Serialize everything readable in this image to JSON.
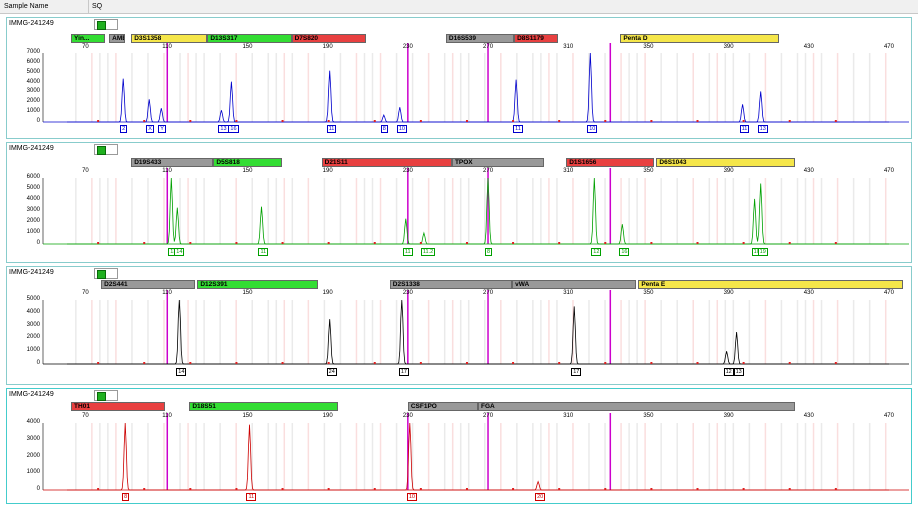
{
  "header": {
    "col_sample_name": "Sample Name",
    "col_sq": "SQ"
  },
  "panels": [
    {
      "sample": "IMMG-241249",
      "color": "#0000cc",
      "yticks": [
        "7000",
        "6000",
        "5000",
        "4000",
        "3000",
        "2000",
        "1000",
        "0"
      ],
      "ymax": 7000,
      "loci": [
        {
          "name": "Yin...",
          "start": 62,
          "end": 79,
          "color": "#33dd33"
        },
        {
          "name": "AMEL",
          "start": 81,
          "end": 89,
          "color": "#999999"
        },
        {
          "name": "D3S1358",
          "start": 92,
          "end": 130,
          "color": "#f5e64a"
        },
        {
          "name": "D13S317",
          "start": 130,
          "end": 172,
          "color": "#33dd33"
        },
        {
          "name": "D7S820",
          "start": 172,
          "end": 209,
          "color": "#e84040"
        },
        {
          "name": "D16S539",
          "start": 249,
          "end": 283,
          "color": "#999999"
        },
        {
          "name": "D8S1179",
          "start": 283,
          "end": 305,
          "color": "#e84040"
        },
        {
          "name": "Penta D",
          "start": 336,
          "end": 415,
          "color": "#f5e64a"
        }
      ],
      "peaks": [
        {
          "bp": 88,
          "h": 4400,
          "label": "2"
        },
        {
          "bp": 101,
          "h": 2300,
          "label": "X"
        },
        {
          "bp": 107,
          "h": 1400,
          "label": "Y"
        },
        {
          "bp": 137,
          "h": 1200,
          "label": "13"
        },
        {
          "bp": 142,
          "h": 4100,
          "label": "16"
        },
        {
          "bp": 191,
          "h": 5200,
          "label": "11"
        },
        {
          "bp": 218,
          "h": 700,
          "label": "8"
        },
        {
          "bp": 226,
          "h": 1500,
          "label": "10"
        },
        {
          "bp": 284,
          "h": 4300,
          "label": "11"
        },
        {
          "bp": 321,
          "h": 7000,
          "label": "10"
        },
        {
          "bp": 397,
          "h": 1800,
          "label": "11"
        },
        {
          "bp": 406,
          "h": 3100,
          "label": "13"
        }
      ]
    },
    {
      "sample": "IMMG-241249",
      "color": "#00a000",
      "yticks": [
        "6000",
        "5000",
        "4000",
        "3000",
        "2000",
        "1000",
        "0"
      ],
      "ymax": 6000,
      "loci": [
        {
          "name": "D19S433",
          "start": 92,
          "end": 133,
          "color": "#999999"
        },
        {
          "name": "D5S818",
          "start": 133,
          "end": 167,
          "color": "#33dd33"
        },
        {
          "name": "D21S11",
          "start": 187,
          "end": 252,
          "color": "#e84040"
        },
        {
          "name": "TPOX",
          "start": 252,
          "end": 298,
          "color": "#999999"
        },
        {
          "name": "D1S1656",
          "start": 309,
          "end": 353,
          "color": "#e84040"
        },
        {
          "name": "D6S1043",
          "start": 354,
          "end": 423,
          "color": "#f5e64a"
        }
      ],
      "peaks": [
        {
          "bp": 112,
          "h": 6000,
          "label": "13"
        },
        {
          "bp": 115,
          "h": 3300,
          "label": "14"
        },
        {
          "bp": 157,
          "h": 3400,
          "label": "11"
        },
        {
          "bp": 229,
          "h": 2300,
          "label": "11"
        },
        {
          "bp": 238,
          "h": 1000,
          "label": "11.2"
        },
        {
          "bp": 270,
          "h": 6000,
          "label": "8"
        },
        {
          "bp": 323,
          "h": 6000,
          "label": "12"
        },
        {
          "bp": 337,
          "h": 1800,
          "label": "16"
        },
        {
          "bp": 403,
          "h": 4100,
          "label": "10"
        },
        {
          "bp": 406,
          "h": 5500,
          "label": "19"
        }
      ]
    },
    {
      "sample": "IMMG-241249",
      "color": "#000000",
      "yticks": [
        "5000",
        "4000",
        "3000",
        "2000",
        "1000",
        "0"
      ],
      "ymax": 5000,
      "loci": [
        {
          "name": "D2S441",
          "start": 77,
          "end": 124,
          "color": "#999999"
        },
        {
          "name": "D12S391",
          "start": 125,
          "end": 185,
          "color": "#33dd33"
        },
        {
          "name": "D2S1338",
          "start": 221,
          "end": 282,
          "color": "#999999"
        },
        {
          "name": "vWA",
          "start": 282,
          "end": 344,
          "color": "#999999"
        },
        {
          "name": "Penta E",
          "start": 345,
          "end": 477,
          "color": "#f5e64a"
        }
      ],
      "peaks": [
        {
          "bp": 116,
          "h": 5400,
          "label": "14"
        },
        {
          "bp": 191,
          "h": 3500,
          "label": "24"
        },
        {
          "bp": 227,
          "h": 5400,
          "label": "17"
        },
        {
          "bp": 313,
          "h": 4500,
          "label": "17"
        },
        {
          "bp": 389,
          "h": 1000,
          "label": "12"
        },
        {
          "bp": 394,
          "h": 2500,
          "label": "13"
        }
      ]
    },
    {
      "sample": "IMMG-241249",
      "color": "#cc0000",
      "yticks": [
        "4000",
        "3000",
        "2000",
        "1000",
        "0"
      ],
      "ymax": 4000,
      "loci": [
        {
          "name": "TH01",
          "start": 62,
          "end": 109,
          "color": "#e84040"
        },
        {
          "name": "D18S51",
          "start": 121,
          "end": 195,
          "color": "#33dd33"
        },
        {
          "name": "CSF1PO",
          "start": 230,
          "end": 265,
          "color": "#999999"
        },
        {
          "name": "FGA",
          "start": 265,
          "end": 423,
          "color": "#999999"
        }
      ],
      "peaks": [
        {
          "bp": 89,
          "h": 4000,
          "label": "8"
        },
        {
          "bp": 151,
          "h": 3900,
          "label": "11"
        },
        {
          "bp": 231,
          "h": 4200,
          "label": "10"
        },
        {
          "bp": 295,
          "h": 500,
          "label": "20"
        }
      ]
    }
  ],
  "x_axis": {
    "min": 50,
    "max": 480,
    "ticks": [
      "70",
      "110",
      "150",
      "190",
      "230",
      "270",
      "310",
      "350",
      "390",
      "430",
      "470"
    ]
  }
}
